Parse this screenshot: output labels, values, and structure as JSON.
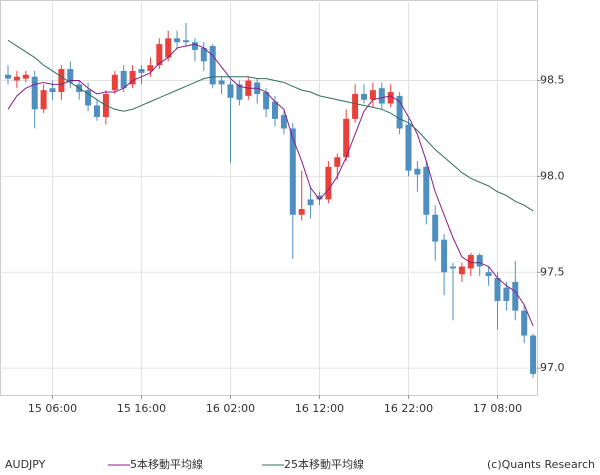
{
  "chart_data": {
    "type": "candlestick",
    "symbol": "AUDJPY",
    "copyright": "(c)Quants Research",
    "categories": [
      null,
      null,
      null,
      null,
      null,
      "15 06:00",
      null,
      null,
      null,
      null,
      null,
      null,
      null,
      null,
      null,
      "15 16:00",
      null,
      null,
      null,
      null,
      null,
      null,
      null,
      null,
      null,
      "16 02:00",
      null,
      null,
      null,
      null,
      null,
      null,
      null,
      null,
      null,
      "16 12:00",
      null,
      null,
      null,
      null,
      null,
      null,
      null,
      null,
      null,
      "16 22:00",
      null,
      null,
      null,
      null,
      null,
      null,
      null,
      null,
      null,
      "17 08:00",
      null,
      null,
      null,
      null
    ],
    "open": [
      98.53,
      98.5,
      98.51,
      98.52,
      98.35,
      98.46,
      98.44,
      98.56,
      98.48,
      98.45,
      98.37,
      98.31,
      98.45,
      98.55,
      98.48,
      98.56,
      98.55,
      98.58,
      98.62,
      98.72,
      98.71,
      98.7,
      98.67,
      98.68,
      98.5,
      98.48,
      98.48,
      98.42,
      98.49,
      98.44,
      98.39,
      98.32,
      98.25,
      97.8,
      97.88,
      97.9,
      97.88,
      98.05,
      98.1,
      98.3,
      98.43,
      98.4,
      98.46,
      98.38,
      98.42,
      98.27,
      98.04,
      98.05,
      97.8,
      97.67,
      97.53,
      97.49,
      97.52,
      97.59,
      97.5,
      97.47,
      97.42,
      97.45,
      97.3,
      97.17
    ],
    "high": [
      98.58,
      98.55,
      98.55,
      98.55,
      98.48,
      98.5,
      98.58,
      98.6,
      98.5,
      98.49,
      98.4,
      98.45,
      98.55,
      98.58,
      98.58,
      98.58,
      98.62,
      98.72,
      98.76,
      98.76,
      98.8,
      98.72,
      98.7,
      98.69,
      98.52,
      98.5,
      98.5,
      98.52,
      98.51,
      98.46,
      98.42,
      98.34,
      98.28,
      98.03,
      97.95,
      97.92,
      98.08,
      98.12,
      98.35,
      98.48,
      98.48,
      98.49,
      98.49,
      98.48,
      98.44,
      98.3,
      98.08,
      98.08,
      97.85,
      97.7,
      97.55,
      97.55,
      97.6,
      97.6,
      97.53,
      97.5,
      97.45,
      97.56,
      97.33,
      97.18
    ],
    "low": [
      98.48,
      98.46,
      98.49,
      98.25,
      98.33,
      98.4,
      98.4,
      98.46,
      98.4,
      98.34,
      98.29,
      98.27,
      98.43,
      98.44,
      98.46,
      98.48,
      98.52,
      98.56,
      98.6,
      98.66,
      98.68,
      98.6,
      98.55,
      98.46,
      98.43,
      98.07,
      98.37,
      98.4,
      98.38,
      98.31,
      98.26,
      98.22,
      97.57,
      97.77,
      97.78,
      97.85,
      97.86,
      97.98,
      98.08,
      98.28,
      98.38,
      98.36,
      98.35,
      98.36,
      98.22,
      98.0,
      97.92,
      97.75,
      97.56,
      97.38,
      97.25,
      97.45,
      97.48,
      97.48,
      97.43,
      97.2,
      97.3,
      97.25,
      97.13,
      96.95
    ],
    "close": [
      98.51,
      98.52,
      98.53,
      98.35,
      98.45,
      98.44,
      98.56,
      98.49,
      98.44,
      98.37,
      98.31,
      98.43,
      98.53,
      98.46,
      98.55,
      98.54,
      98.58,
      98.69,
      98.72,
      98.7,
      98.7,
      98.66,
      98.6,
      98.48,
      98.48,
      98.41,
      98.4,
      98.5,
      98.43,
      98.35,
      98.3,
      98.25,
      97.8,
      97.83,
      97.85,
      97.88,
      98.05,
      98.1,
      98.3,
      98.43,
      98.4,
      98.45,
      98.38,
      98.44,
      98.25,
      98.03,
      98.01,
      97.8,
      97.66,
      97.5,
      97.52,
      97.53,
      97.59,
      97.53,
      97.48,
      97.35,
      97.35,
      97.3,
      97.17,
      96.97
    ],
    "up_color": "#e8413c",
    "down_color": "#4f8fc0",
    "lines": [
      {
        "name": "5本移動平均線",
        "color": "#8b1a8b",
        "values": [
          98.35,
          98.42,
          98.46,
          98.48,
          98.49,
          98.48,
          98.48,
          98.5,
          98.5,
          98.46,
          98.43,
          98.44,
          98.44,
          98.46,
          98.5,
          98.52,
          98.54,
          98.59,
          98.62,
          98.67,
          98.68,
          98.69,
          98.67,
          98.63,
          98.57,
          98.51,
          98.47,
          98.46,
          98.46,
          98.44,
          98.39,
          98.35,
          98.2,
          98.08,
          97.94,
          97.88,
          97.93,
          98.0,
          98.1,
          98.22,
          98.34,
          98.4,
          98.41,
          98.42,
          98.39,
          98.31,
          98.22,
          98.08,
          97.92,
          97.8,
          97.68,
          97.58,
          97.55,
          97.55,
          97.53,
          97.47,
          97.43,
          97.4,
          97.33,
          97.22
        ]
      },
      {
        "name": "25本移動平均線",
        "color": "#2f6f5f",
        "values": [
          98.71,
          98.68,
          98.65,
          98.62,
          98.58,
          98.55,
          98.52,
          98.49,
          98.46,
          98.43,
          98.4,
          98.37,
          98.35,
          98.34,
          98.35,
          98.37,
          98.39,
          98.41,
          98.43,
          98.45,
          98.47,
          98.49,
          98.51,
          98.52,
          98.52,
          98.52,
          98.52,
          98.52,
          98.51,
          98.51,
          98.5,
          98.49,
          98.47,
          98.45,
          98.44,
          98.42,
          98.41,
          98.4,
          98.39,
          98.38,
          98.37,
          98.36,
          98.35,
          98.33,
          98.3,
          98.28,
          98.24,
          98.19,
          98.14,
          98.1,
          98.06,
          98.02,
          97.99,
          97.97,
          97.95,
          97.92,
          97.9,
          97.87,
          97.85,
          97.82
        ]
      }
    ],
    "ylim": [
      96.86,
      98.92
    ],
    "yticks": [
      98.5,
      {
        "value": 98,
        "label": "98.0"
      },
      97.5,
      {
        "value": 97,
        "label": "97.0"
      }
    ],
    "grid": true
  }
}
